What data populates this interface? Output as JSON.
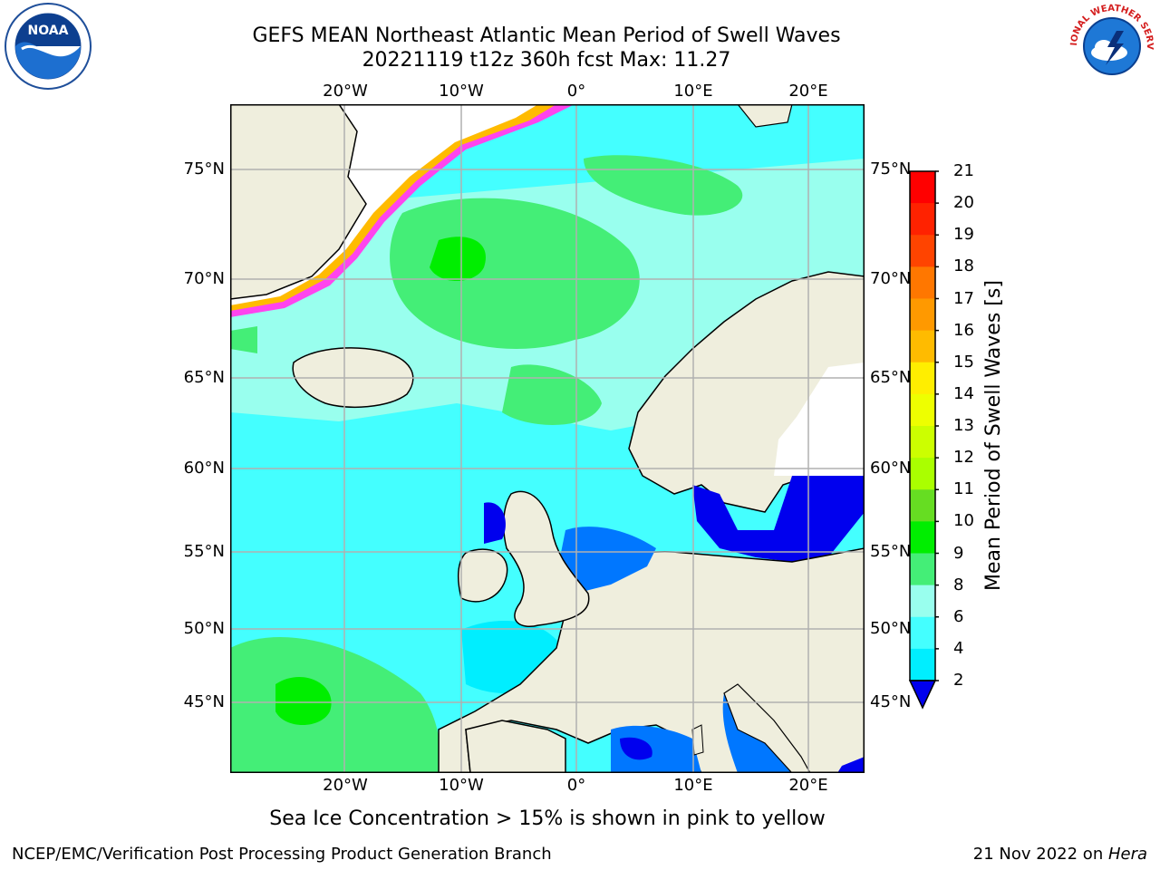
{
  "title": {
    "line1": "GEFS MEAN Northeast Atlantic Mean Period of Swell Waves",
    "line2": "20221119 t12z 360h fcst   Max: 11.27"
  },
  "map": {
    "lon_labels": [
      "20°W",
      "10°W",
      "0°",
      "10°E",
      "20°E"
    ],
    "lat_labels": [
      "75°N",
      "70°N",
      "65°N",
      "60°N",
      "55°N",
      "50°N",
      "45°N"
    ],
    "note": "Sea Ice Concentration > 15% is shown in pink to yellow"
  },
  "colorbar": {
    "title": "Mean Period of Swell Waves [s]",
    "ticks": [
      "21",
      "20",
      "19",
      "18",
      "17",
      "16",
      "15",
      "14",
      "13",
      "12",
      "11",
      "10",
      "9",
      "8",
      "6",
      "4",
      "2"
    ],
    "colors": [
      "#ff0000",
      "#ff2200",
      "#ff4400",
      "#ff7700",
      "#ff9900",
      "#ffbb00",
      "#ffee00",
      "#eeff00",
      "#ccff00",
      "#aaff00",
      "#66dd22",
      "#00ee00",
      "#44ee77",
      "#99ffee",
      "#44ffff",
      "#00eeff",
      "#0077ff"
    ],
    "extend_color": "#0000ee"
  },
  "logos": {
    "left": {
      "name": "NOAA",
      "text": "NOAA"
    },
    "right": {
      "name": "National Weather Service",
      "text": "NATIONAL WEATHER SERVICE"
    }
  },
  "footer": {
    "left": "NCEP/EMC/Verification Post Processing Product Generation Branch",
    "right_prefix": "21 Nov 2022 on ",
    "right_host": "Hera"
  }
}
